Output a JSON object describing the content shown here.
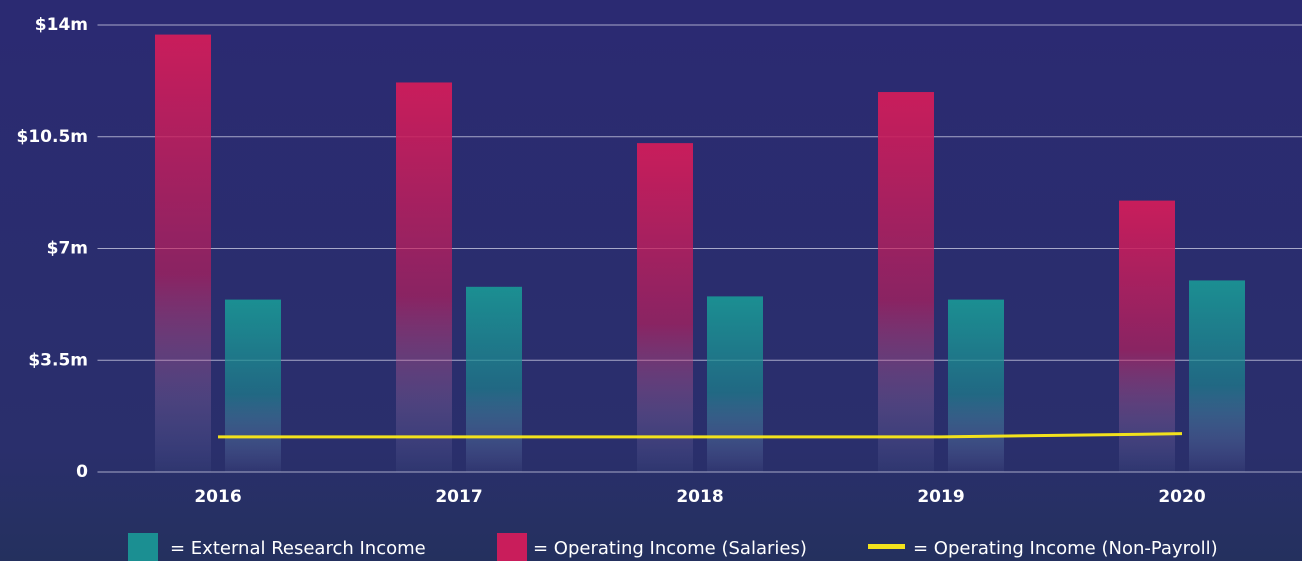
{
  "chart_data": {
    "type": "bar",
    "categories": [
      "2016",
      "2017",
      "2018",
      "2019",
      "2020"
    ],
    "series": [
      {
        "name": "= External Research Income",
        "color": "#1b8f92",
        "type": "bar",
        "values": [
          5.4,
          5.8,
          5.5,
          5.4,
          6.0
        ]
      },
      {
        "name": "= Operating Income (Salaries)",
        "color": "#c91d5b",
        "type": "bar",
        "values": [
          13.7,
          12.2,
          10.3,
          11.9,
          8.5
        ]
      },
      {
        "name": "= Operating Income  (Non-Payroll)",
        "color": "#f2e21c",
        "type": "line",
        "values": [
          1.1,
          1.1,
          1.1,
          1.1,
          1.2
        ]
      }
    ],
    "ylim": [
      0,
      14
    ],
    "yticks": [
      0,
      {
        "value": 3.5,
        "label": "$3.5m"
      },
      {
        "value": 7,
        "label": "$7m"
      },
      {
        "value": 10.5,
        "label": "$10.5m"
      },
      {
        "value": 14,
        "label": "$14m"
      }
    ],
    "grid": true
  }
}
